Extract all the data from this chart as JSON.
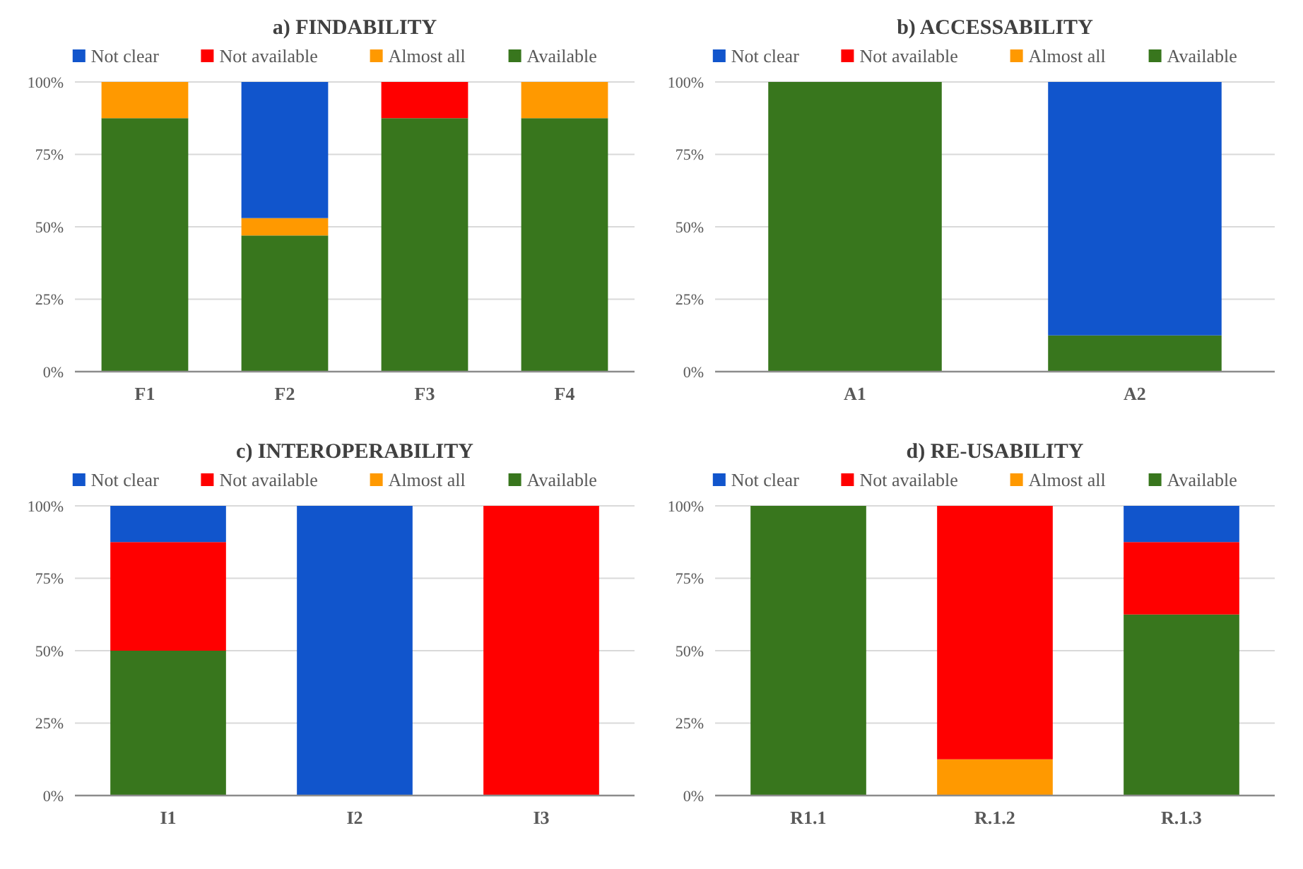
{
  "chart_data": [
    {
      "type": "bar",
      "title": "a) FINDABILITY",
      "categories": [
        "F1",
        "F2",
        "F3",
        "F4"
      ],
      "stacked": true,
      "ylim": [
        0,
        100
      ],
      "yticks": [
        {
          "value": 0,
          "label": "0%"
        },
        {
          "value": 25,
          "label": "25%"
        },
        {
          "value": 50,
          "label": "50%"
        },
        {
          "value": 75,
          "label": "75%"
        },
        {
          "value": 100,
          "label": "100%"
        }
      ],
      "grid": "y",
      "legend": "top",
      "series": [
        {
          "name": "Available",
          "color": "#38761d",
          "values": [
            87.5,
            47,
            87.5,
            87.5
          ]
        },
        {
          "name": "Almost all",
          "color": "#ff9900",
          "values": [
            12.5,
            6,
            0,
            12.5
          ]
        },
        {
          "name": "Not available",
          "color": "#ff0000",
          "values": [
            0,
            0,
            12.5,
            0
          ]
        },
        {
          "name": "Not clear",
          "color": "#1155cc",
          "values": [
            0,
            47,
            0,
            0
          ]
        }
      ]
    },
    {
      "type": "bar",
      "title": "b) ACCESSABILITY",
      "categories": [
        "A1",
        "A2"
      ],
      "stacked": true,
      "ylim": [
        0,
        100
      ],
      "yticks": [
        {
          "value": 0,
          "label": "0%"
        },
        {
          "value": 25,
          "label": "25%"
        },
        {
          "value": 50,
          "label": "50%"
        },
        {
          "value": 75,
          "label": "75%"
        },
        {
          "value": 100,
          "label": "100%"
        }
      ],
      "grid": "y",
      "legend": "top",
      "series": [
        {
          "name": "Available",
          "color": "#38761d",
          "values": [
            100,
            12.5
          ]
        },
        {
          "name": "Almost all",
          "color": "#ff9900",
          "values": [
            0,
            0
          ]
        },
        {
          "name": "Not available",
          "color": "#ff0000",
          "values": [
            0,
            0
          ]
        },
        {
          "name": "Not clear",
          "color": "#1155cc",
          "values": [
            0,
            87.5
          ]
        }
      ]
    },
    {
      "type": "bar",
      "title": "c) INTEROPERABILITY",
      "categories": [
        "I1",
        "I2",
        "I3"
      ],
      "stacked": true,
      "ylim": [
        0,
        100
      ],
      "yticks": [
        {
          "value": 0,
          "label": "0%"
        },
        {
          "value": 25,
          "label": "25%"
        },
        {
          "value": 50,
          "label": "50%"
        },
        {
          "value": 75,
          "label": "75%"
        },
        {
          "value": 100,
          "label": "100%"
        }
      ],
      "grid": "y",
      "legend": "top",
      "series": [
        {
          "name": "Available",
          "color": "#38761d",
          "values": [
            50,
            0,
            0
          ]
        },
        {
          "name": "Almost all",
          "color": "#ff9900",
          "values": [
            0,
            0,
            0
          ]
        },
        {
          "name": "Not available",
          "color": "#ff0000",
          "values": [
            37.5,
            0,
            100
          ]
        },
        {
          "name": "Not clear",
          "color": "#1155cc",
          "values": [
            12.5,
            100,
            0
          ]
        }
      ]
    },
    {
      "type": "bar",
      "title": "d) RE-USABILITY",
      "categories": [
        "R1.1",
        "R.1.2",
        "R.1.3"
      ],
      "stacked": true,
      "ylim": [
        0,
        100
      ],
      "yticks": [
        {
          "value": 0,
          "label": "0%"
        },
        {
          "value": 25,
          "label": "25%"
        },
        {
          "value": 50,
          "label": "50%"
        },
        {
          "value": 75,
          "label": "75%"
        },
        {
          "value": 100,
          "label": "100%"
        }
      ],
      "grid": "y",
      "legend": "top",
      "series": [
        {
          "name": "Available",
          "color": "#38761d",
          "values": [
            100,
            0,
            62.5
          ]
        },
        {
          "name": "Almost all",
          "color": "#ff9900",
          "values": [
            0,
            12.5,
            0
          ]
        },
        {
          "name": "Not available",
          "color": "#ff0000",
          "values": [
            0,
            87.5,
            25
          ]
        },
        {
          "name": "Not clear",
          "color": "#1155cc",
          "values": [
            0,
            0,
            12.5
          ]
        }
      ]
    }
  ]
}
